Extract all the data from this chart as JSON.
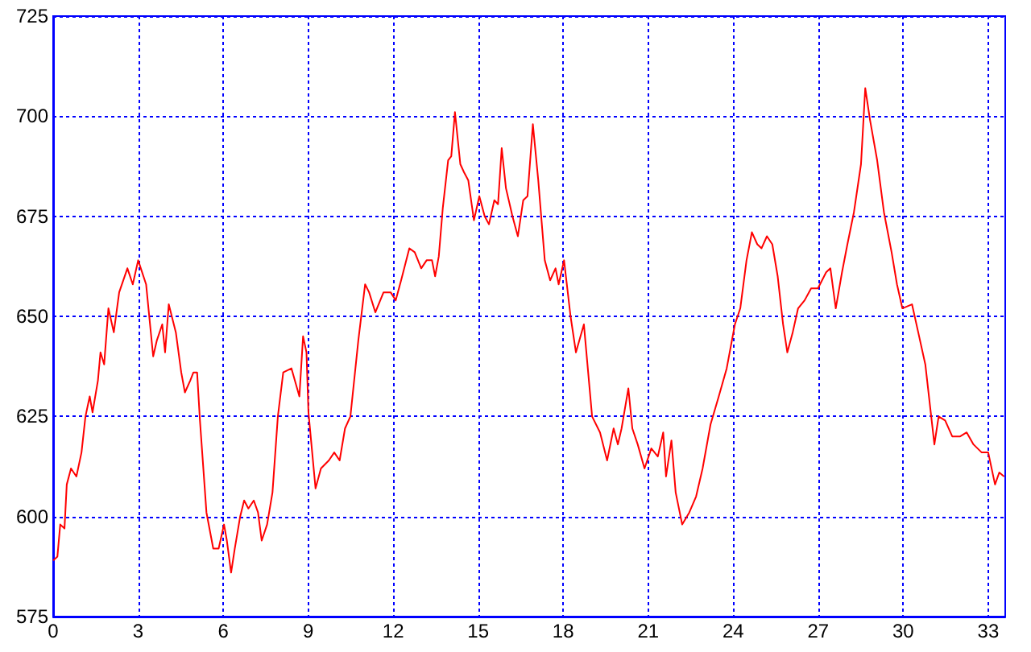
{
  "chart_data": {
    "type": "line",
    "xlim": [
      0,
      33.6
    ],
    "ylim": [
      575,
      725
    ],
    "xticks": [
      0,
      3,
      6,
      9,
      12,
      15,
      18,
      21,
      24,
      27,
      30,
      33
    ],
    "yticks": [
      575,
      600,
      625,
      650,
      675,
      700,
      725
    ],
    "grid": true,
    "series": [
      {
        "color": "#ff0000",
        "x": [
          0,
          0.15,
          0.25,
          0.4,
          0.48,
          0.63,
          0.82,
          1.0,
          1.14,
          1.29,
          1.39,
          1.58,
          1.67,
          1.8,
          1.95,
          2.14,
          2.33,
          2.62,
          2.81,
          3.0,
          3.28,
          3.53,
          3.66,
          3.85,
          3.95,
          4.08,
          4.33,
          4.52,
          4.65,
          4.84,
          4.95,
          5.08,
          5.18,
          5.41,
          5.65,
          5.84,
          6.03,
          6.13,
          6.28,
          6.41,
          6.6,
          6.74,
          6.89,
          7.08,
          7.23,
          7.36,
          7.55,
          7.74,
          7.93,
          8.12,
          8.41,
          8.69,
          8.82,
          8.94,
          9.01,
          9.26,
          9.45,
          9.73,
          9.92,
          10.11,
          10.3,
          10.49,
          10.77,
          11.01,
          11.15,
          11.37,
          11.66,
          11.91,
          12.09,
          12.28,
          12.57,
          12.76,
          12.99,
          13.18,
          13.37,
          13.48,
          13.61,
          13.75,
          13.94,
          14.05,
          14.18,
          14.37,
          14.5,
          14.65,
          14.85,
          15.04,
          15.23,
          15.38,
          15.57,
          15.7,
          15.83,
          15.98,
          16.21,
          16.4,
          16.59,
          16.74,
          16.93,
          17.12,
          17.35,
          17.54,
          17.73,
          17.84,
          18.03,
          18.26,
          18.45,
          18.73,
          19.02,
          19.3,
          19.55,
          19.78,
          19.93,
          20.06,
          20.3,
          20.44,
          20.63,
          20.87,
          21.11,
          21.34,
          21.53,
          21.63,
          21.82,
          21.97,
          22.2,
          22.45,
          22.69,
          22.92,
          23.2,
          23.49,
          23.77,
          24.06,
          24.25,
          24.47,
          24.66,
          24.85,
          25.0,
          25.19,
          25.38,
          25.57,
          25.76,
          25.91,
          26.1,
          26.29,
          26.52,
          26.75,
          26.99,
          27.28,
          27.43,
          27.62,
          27.84,
          28.03,
          28.26,
          28.51,
          28.66,
          28.83,
          29.08,
          29.32,
          29.59,
          29.78,
          29.97,
          30.31,
          30.53,
          30.78,
          31.1,
          31.25,
          31.48,
          31.73,
          32.01,
          32.24,
          32.48,
          32.77,
          33.0,
          33.24,
          33.39,
          33.56
        ],
        "values": [
          589,
          590,
          598,
          597,
          608,
          612,
          610,
          616,
          625,
          630,
          626,
          634,
          641,
          638,
          652,
          646,
          656,
          662,
          658,
          664,
          658,
          640,
          644,
          648,
          641,
          653,
          646,
          636,
          631,
          634,
          636,
          636,
          624,
          601,
          592,
          592,
          598,
          594,
          586,
          592,
          600,
          604,
          602,
          604,
          601,
          594,
          598,
          606,
          625,
          636,
          637,
          630,
          645,
          641,
          626,
          607,
          612,
          614,
          616,
          614,
          622,
          625,
          644,
          658,
          656,
          651,
          656,
          656,
          654,
          659,
          667,
          666,
          662,
          664,
          664,
          660,
          665,
          677,
          689,
          690,
          701,
          688,
          686,
          684,
          674,
          680,
          675,
          673,
          679,
          678,
          692,
          682,
          675,
          670,
          679,
          680,
          698,
          684,
          664,
          659,
          662,
          658,
          664,
          650,
          641,
          648,
          625,
          621,
          614,
          622,
          618,
          622,
          632,
          622,
          618,
          612,
          617,
          615,
          621,
          610,
          619,
          606,
          598,
          601,
          605,
          612,
          623,
          630,
          637,
          648,
          652,
          664,
          671,
          668,
          667,
          670,
          668,
          660,
          648,
          641,
          646,
          652,
          654,
          657,
          657,
          661,
          662,
          652,
          661,
          668,
          676,
          688,
          707,
          699,
          689,
          676,
          666,
          658,
          652,
          653,
          646,
          638,
          618,
          625,
          624,
          620,
          620,
          621,
          618,
          616,
          616,
          608,
          611,
          610
        ]
      }
    ]
  }
}
